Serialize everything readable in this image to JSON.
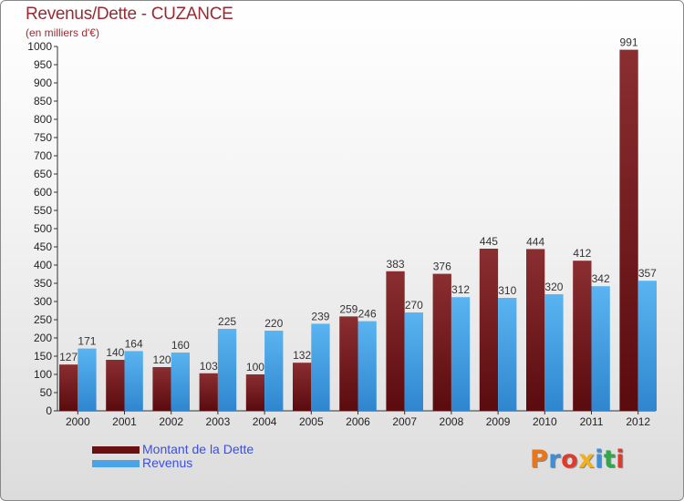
{
  "chart_data": {
    "type": "bar",
    "title": "Revenus/Dette - CUZANCE",
    "subtitle": "(en milliers d'€)",
    "xlabel": "",
    "ylabel": "",
    "ylim": [
      0,
      1000
    ],
    "ytick_step": 50,
    "grid": false,
    "legend_position": "bottom-left",
    "categories": [
      "2000",
      "2001",
      "2002",
      "2003",
      "2004",
      "2005",
      "2006",
      "2007",
      "2008",
      "2009",
      "2010",
      "2011",
      "2012"
    ],
    "series": [
      {
        "name": "Montant de la Dette",
        "color": "#7a1a1c",
        "values": [
          127,
          140,
          120,
          103,
          100,
          132,
          259,
          383,
          376,
          445,
          444,
          412,
          991
        ]
      },
      {
        "name": "Revenus",
        "color": "#4aa3e6",
        "values": [
          171,
          164,
          160,
          225,
          220,
          239,
          246,
          270,
          312,
          310,
          320,
          342,
          357
        ]
      }
    ]
  },
  "legend": {
    "items": [
      {
        "label": "Montant de la Dette",
        "color": "#6a0f12"
      },
      {
        "label": "Revenus",
        "color": "#4aa3e6"
      }
    ]
  },
  "logo": {
    "text": "Proxiti",
    "letter_colors": [
      "#e9761a",
      "#3f8fd8",
      "#e03a2a",
      "#f0b020",
      "#3f8fd8",
      "#2fa84a",
      "#e03a2a"
    ]
  }
}
